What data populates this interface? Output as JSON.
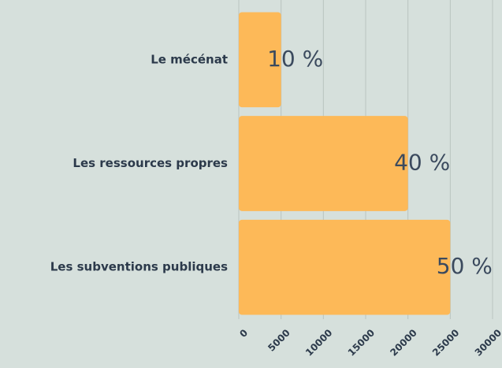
{
  "chart_data": {
    "type": "bar",
    "orientation": "horizontal",
    "categories": [
      "Le mécénat",
      "Les ressources propres",
      "Les subventions publiques"
    ],
    "values": [
      5000,
      20000,
      25000
    ],
    "annotations": [
      "10 %",
      "40 %",
      "50 %"
    ],
    "color": "#fdb958",
    "xlim": [
      0,
      30000
    ],
    "xticks": [
      0,
      5000,
      10000,
      15000,
      20000,
      25000,
      30000
    ],
    "grid": true
  }
}
